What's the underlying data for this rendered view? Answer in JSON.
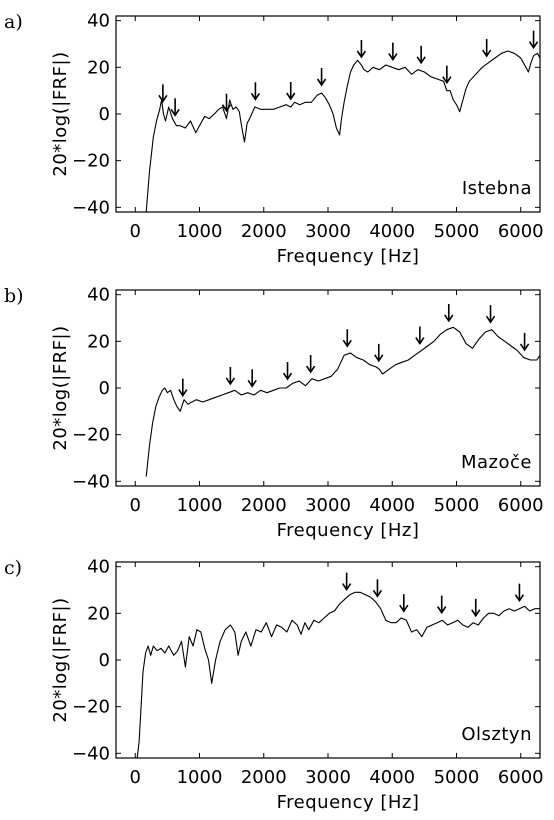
{
  "chart_data": [
    {
      "type": "line",
      "panel_label": "a)",
      "annotation": "Istebna",
      "xlabel": "Frequency [Hz]",
      "ylabel": "20*log(|FRF|)",
      "xlim": [
        -300,
        6300
      ],
      "ylim": [
        -42,
        42
      ],
      "x_ticks": [
        0,
        1000,
        2000,
        3000,
        4000,
        5000,
        6000
      ],
      "x_tick_labels": [
        "0",
        "1000",
        "2000",
        "3000",
        "4000",
        "5000",
        "6000"
      ],
      "y_ticks": [
        -40,
        -20,
        0,
        20,
        40
      ],
      "y_tick_labels": [
        "−40",
        "−20",
        "0",
        "20",
        "40"
      ],
      "series": [
        {
          "x": [
            170,
            220,
            280,
            330,
            380,
            410,
            440,
            470,
            520,
            580,
            640,
            700,
            780,
            860,
            940,
            1000,
            1080,
            1150,
            1230,
            1300,
            1360,
            1420,
            1470,
            1520,
            1570,
            1620,
            1660,
            1700,
            1740,
            1780,
            1860,
            1950,
            2050,
            2150,
            2250,
            2350,
            2420,
            2480,
            2560,
            2650,
            2740,
            2830,
            2900,
            2960,
            3020,
            3080,
            3130,
            3180,
            3210,
            3250,
            3300,
            3350,
            3400,
            3460,
            3520,
            3560,
            3620,
            3700,
            3800,
            3900,
            4000,
            4100,
            4200,
            4300,
            4400,
            4500,
            4600,
            4700,
            4800,
            4850,
            4900,
            4950,
            5000,
            5050,
            5100,
            5150,
            5200,
            5300,
            5400,
            5500,
            5600,
            5700,
            5800,
            5900,
            6000,
            6080,
            6120,
            6160,
            6200,
            6260,
            6300
          ],
          "y": [
            -42,
            -25,
            -10,
            -3,
            2,
            6,
            0,
            -3,
            3,
            -2,
            -5,
            -5,
            -6,
            -3,
            -8,
            -5,
            -1,
            -2,
            0,
            2,
            3,
            -2,
            6,
            2,
            3,
            1,
            -6,
            -12,
            -4,
            -2,
            3,
            2,
            2,
            2,
            3,
            4,
            3,
            5,
            4,
            5,
            5,
            8,
            9,
            7,
            4,
            0,
            -6,
            -9,
            -2,
            5,
            12,
            18,
            21,
            23,
            21,
            19,
            18,
            20,
            19,
            21,
            20,
            19,
            20,
            17,
            19,
            18,
            16,
            15,
            14,
            10,
            10,
            6,
            4,
            1,
            6,
            11,
            14,
            17,
            20,
            22,
            24,
            26,
            27,
            26,
            24,
            20,
            18,
            22,
            25,
            26,
            24
          ]
        }
      ],
      "arrow_x": [
        430,
        620,
        1420,
        1870,
        2420,
        2900,
        3520,
        4010,
        4450,
        4850,
        5470,
        6200
      ]
    },
    {
      "type": "line",
      "panel_label": "b)",
      "annotation": "Mazoče",
      "xlabel": "Frequency [Hz]",
      "ylabel": "20*log(|FRF|)",
      "xlim": [
        -300,
        6300
      ],
      "ylim": [
        -42,
        42
      ],
      "x_ticks": [
        0,
        1000,
        2000,
        3000,
        4000,
        5000,
        6000
      ],
      "x_tick_labels": [
        "0",
        "1000",
        "2000",
        "3000",
        "4000",
        "5000",
        "6000"
      ],
      "y_ticks": [
        -40,
        -20,
        0,
        20,
        40
      ],
      "y_tick_labels": [
        "−40",
        "−20",
        "0",
        "20",
        "40"
      ],
      "series": [
        {
          "x": [
            170,
            220,
            270,
            320,
            370,
            420,
            460,
            500,
            550,
            600,
            650,
            700,
            760,
            820,
            880,
            950,
            1050,
            1150,
            1250,
            1350,
            1450,
            1550,
            1650,
            1750,
            1850,
            1950,
            2050,
            2150,
            2250,
            2350,
            2450,
            2550,
            2650,
            2750,
            2850,
            2950,
            3050,
            3150,
            3250,
            3350,
            3450,
            3550,
            3650,
            3750,
            3800,
            3850,
            3950,
            4050,
            4150,
            4250,
            4350,
            4450,
            4550,
            4650,
            4750,
            4850,
            4950,
            5050,
            5150,
            5250,
            5350,
            5450,
            5550,
            5650,
            5750,
            5850,
            5950,
            6050,
            6150,
            6250,
            6300
          ],
          "y": [
            -38,
            -25,
            -15,
            -8,
            -4,
            -1,
            0,
            -2,
            -1,
            -5,
            -8,
            -10,
            -5,
            -7,
            -6,
            -5,
            -6,
            -5,
            -4,
            -3,
            -2,
            -1,
            -3,
            -2,
            -3,
            -1,
            -2,
            -1,
            0,
            0,
            2,
            3,
            1,
            4,
            3,
            4,
            5,
            8,
            14,
            15,
            13,
            12,
            10,
            9,
            8,
            6,
            8,
            10,
            11,
            12,
            14,
            16,
            18,
            20,
            23,
            25,
            26,
            24,
            19,
            17,
            21,
            24,
            25,
            22,
            20,
            18,
            16,
            13,
            12,
            12,
            14
          ]
        }
      ],
      "arrow_x": [
        740,
        1480,
        1820,
        2370,
        2730,
        3300,
        3790,
        4430,
        4880,
        5530,
        6060
      ]
    },
    {
      "type": "line",
      "panel_label": "c)",
      "annotation": "Olsztyn",
      "xlabel": "Frequency [Hz]",
      "ylabel": "20*log(|FRF|)",
      "xlim": [
        -300,
        6300
      ],
      "ylim": [
        -42,
        42
      ],
      "x_ticks": [
        0,
        1000,
        2000,
        3000,
        4000,
        5000,
        6000
      ],
      "x_tick_labels": [
        "0",
        "1000",
        "2000",
        "3000",
        "4000",
        "5000",
        "6000"
      ],
      "y_ticks": [
        -40,
        -20,
        0,
        20,
        40
      ],
      "y_tick_labels": [
        "−40",
        "−20",
        "0",
        "20",
        "40"
      ],
      "series": [
        {
          "x": [
            30,
            60,
            90,
            120,
            160,
            200,
            240,
            280,
            340,
            400,
            460,
            520,
            600,
            660,
            720,
            780,
            840,
            900,
            960,
            1020,
            1080,
            1140,
            1190,
            1250,
            1320,
            1400,
            1480,
            1550,
            1600,
            1650,
            1720,
            1800,
            1880,
            1960,
            2040,
            2120,
            2200,
            2280,
            2360,
            2440,
            2520,
            2580,
            2640,
            2700,
            2780,
            2860,
            2940,
            3020,
            3100,
            3180,
            3260,
            3340,
            3420,
            3500,
            3580,
            3660,
            3740,
            3820,
            3900,
            3980,
            4060,
            4140,
            4220,
            4300,
            4380,
            4460,
            4540,
            4620,
            4700,
            4780,
            4860,
            4940,
            5020,
            5100,
            5180,
            5260,
            5340,
            5420,
            5500,
            5580,
            5660,
            5740,
            5820,
            5900,
            5980,
            6060,
            6140,
            6220,
            6300
          ],
          "y": [
            -42,
            -35,
            -20,
            -5,
            3,
            6,
            2,
            6,
            4,
            5,
            3,
            6,
            2,
            4,
            8,
            -3,
            10,
            6,
            13,
            12,
            5,
            0,
            -10,
            0,
            8,
            13,
            15,
            12,
            2,
            8,
            12,
            6,
            13,
            12,
            16,
            10,
            15,
            14,
            12,
            17,
            15,
            11,
            16,
            13,
            17,
            16,
            18,
            20,
            21,
            24,
            26,
            28,
            29,
            29,
            28,
            27,
            25,
            22,
            17,
            16,
            16,
            18,
            17,
            12,
            13,
            10,
            14,
            15,
            16,
            17,
            15,
            16,
            17,
            15,
            14,
            16,
            15,
            18,
            20,
            20,
            19,
            21,
            22,
            21,
            22,
            23,
            21,
            22,
            22
          ]
        }
      ],
      "arrow_x": [
        3290,
        3770,
        4180,
        4770,
        5300,
        5980
      ]
    }
  ]
}
